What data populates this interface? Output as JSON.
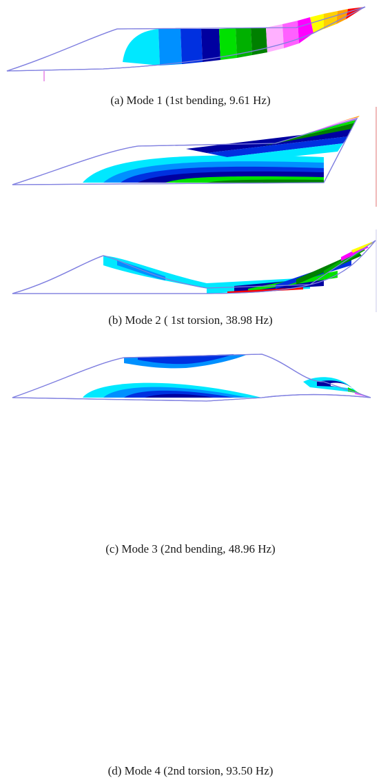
{
  "figure": {
    "panels": [
      {
        "caption": "(a) Mode 1 (1st bending, 9.61 Hz)"
      },
      {
        "caption": "(b) Mode 2 ( 1st torsion, 38.98 Hz)"
      },
      {
        "caption": "(c) Mode 3 (2nd bending, 48.96 Hz)"
      },
      {
        "caption": "(d) Mode 4 (2nd torsion, 93.50 Hz)"
      }
    ],
    "colors": {
      "outline": "#8080e0",
      "contour": [
        "#ffffff",
        "#00e8ff",
        "#0090ff",
        "#0030e0",
        "#0000a0",
        "#00e000",
        "#00b000",
        "#008000",
        "#ffb0ff",
        "#ff60ff",
        "#ff00ff",
        "#ffff00",
        "#ffa000",
        "#ff0000"
      ]
    }
  }
}
